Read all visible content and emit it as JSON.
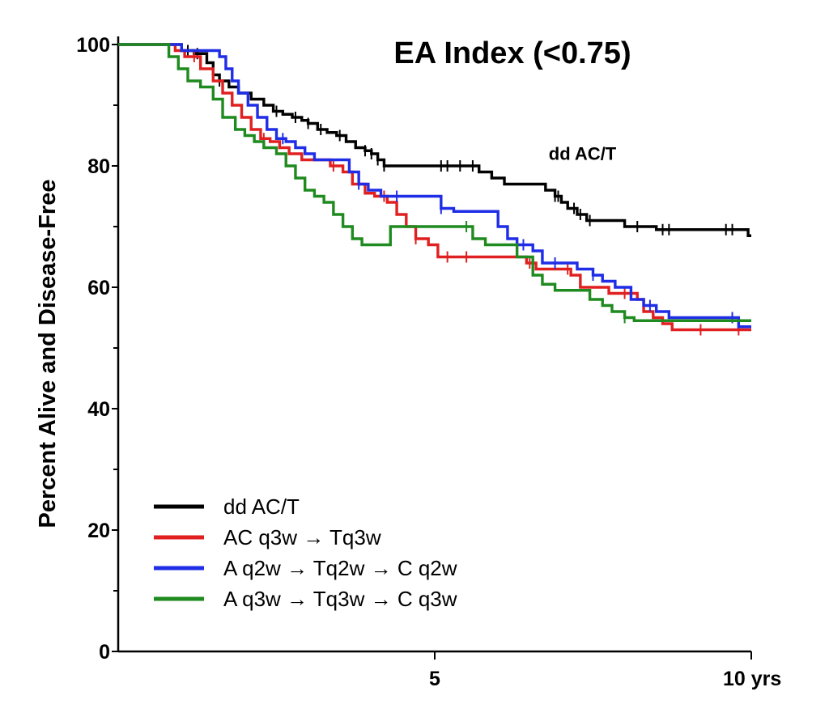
{
  "chart_data": {
    "type": "line",
    "subtype": "kaplan-meier step",
    "title": "EA Index (<0.75)",
    "xlabel": "",
    "ylabel": "Percent Alive and Disease-Free",
    "xlim": [
      0,
      10
    ],
    "ylim": [
      0,
      100
    ],
    "x_ticks": [
      {
        "value": 5,
        "label": "5"
      },
      {
        "value": 10,
        "label": "10 yrs"
      }
    ],
    "y_ticks": [
      {
        "value": 0,
        "label": "0"
      },
      {
        "value": 20,
        "label": "20"
      },
      {
        "value": 40,
        "label": "40"
      },
      {
        "value": 60,
        "label": "60"
      },
      {
        "value": 80,
        "label": "80"
      },
      {
        "value": 100,
        "label": "100"
      }
    ],
    "y_minor_ticks": [
      10,
      30,
      50,
      70,
      90
    ],
    "grid": false,
    "legend_position": "bottom-left",
    "annotations": [
      {
        "text": "dd AC/T",
        "x": 6.8,
        "y": 81,
        "series": "dd AC/T"
      }
    ],
    "series": [
      {
        "name": "dd AC/T",
        "color": "#000000",
        "points": [
          [
            0,
            100
          ],
          [
            0.8,
            100
          ],
          [
            1.0,
            99
          ],
          [
            1.2,
            98.5
          ],
          [
            1.4,
            97
          ],
          [
            1.5,
            95
          ],
          [
            1.6,
            94
          ],
          [
            1.75,
            93
          ],
          [
            1.9,
            92
          ],
          [
            2.1,
            91
          ],
          [
            2.3,
            90
          ],
          [
            2.45,
            89
          ],
          [
            2.6,
            88.5
          ],
          [
            2.75,
            88
          ],
          [
            2.9,
            87.5
          ],
          [
            3.0,
            87
          ],
          [
            3.15,
            86
          ],
          [
            3.3,
            85.5
          ],
          [
            3.45,
            85
          ],
          [
            3.6,
            84
          ],
          [
            3.75,
            83
          ],
          [
            3.9,
            82.5
          ],
          [
            4.0,
            82
          ],
          [
            4.1,
            81
          ],
          [
            4.2,
            80
          ],
          [
            4.6,
            80
          ],
          [
            5.0,
            80
          ],
          [
            5.6,
            80
          ],
          [
            5.7,
            79
          ],
          [
            5.9,
            78
          ],
          [
            6.1,
            77
          ],
          [
            6.6,
            77
          ],
          [
            6.75,
            76
          ],
          [
            6.9,
            75
          ],
          [
            7.0,
            74
          ],
          [
            7.1,
            73
          ],
          [
            7.25,
            72
          ],
          [
            7.4,
            71
          ],
          [
            7.6,
            71
          ],
          [
            8.0,
            70
          ],
          [
            8.4,
            70
          ],
          [
            8.5,
            69.5
          ],
          [
            9.9,
            69.5
          ],
          [
            9.95,
            68.5
          ],
          [
            10.0,
            68.5
          ]
        ],
        "censor_x": [
          1.1,
          1.25,
          1.6,
          2.5,
          2.8,
          3.0,
          3.2,
          3.5,
          3.9,
          4.0,
          4.1,
          4.2,
          5.1,
          5.2,
          5.4,
          5.6,
          6.9,
          6.95,
          7.2,
          7.3,
          7.45,
          8.2,
          8.6,
          8.7,
          9.6,
          9.7
        ]
      },
      {
        "name": "AC q3w → Tq3w",
        "color": "#e02020",
        "points": [
          [
            0,
            100
          ],
          [
            0.8,
            100
          ],
          [
            0.9,
            99
          ],
          [
            1.05,
            98
          ],
          [
            1.3,
            96
          ],
          [
            1.5,
            94
          ],
          [
            1.65,
            92
          ],
          [
            1.8,
            90
          ],
          [
            1.95,
            88
          ],
          [
            2.1,
            86
          ],
          [
            2.25,
            84.5
          ],
          [
            2.4,
            84
          ],
          [
            2.55,
            83
          ],
          [
            2.7,
            82
          ],
          [
            2.9,
            81
          ],
          [
            3.2,
            81
          ],
          [
            3.35,
            80
          ],
          [
            3.55,
            79
          ],
          [
            3.7,
            77
          ],
          [
            3.9,
            75.5
          ],
          [
            4.05,
            75
          ],
          [
            4.25,
            74
          ],
          [
            4.4,
            72
          ],
          [
            4.55,
            70
          ],
          [
            4.7,
            68
          ],
          [
            4.9,
            67
          ],
          [
            5.05,
            65
          ],
          [
            5.8,
            65
          ],
          [
            6.3,
            65
          ],
          [
            6.45,
            64
          ],
          [
            6.6,
            63
          ],
          [
            7.0,
            63
          ],
          [
            7.15,
            62
          ],
          [
            7.3,
            60
          ],
          [
            7.6,
            60
          ],
          [
            7.75,
            59
          ],
          [
            8.1,
            59
          ],
          [
            8.2,
            58
          ],
          [
            8.3,
            56
          ],
          [
            8.45,
            55
          ],
          [
            8.6,
            54
          ],
          [
            8.75,
            53
          ],
          [
            10.0,
            53
          ]
        ],
        "censor_x": [
          1.2,
          2.3,
          3.4,
          4.2,
          4.7,
          5.2,
          5.5,
          6.5,
          7.1,
          8.0,
          8.1,
          9.2,
          9.8
        ]
      },
      {
        "name": "A q2w → Tq2w → C q2w",
        "color": "#1f2de6",
        "points": [
          [
            0,
            100
          ],
          [
            0.9,
            100
          ],
          [
            1.0,
            99
          ],
          [
            1.5,
            99
          ],
          [
            1.6,
            98
          ],
          [
            1.7,
            96
          ],
          [
            1.8,
            94
          ],
          [
            1.9,
            92
          ],
          [
            2.05,
            90
          ],
          [
            2.2,
            88
          ],
          [
            2.35,
            86
          ],
          [
            2.5,
            84.5
          ],
          [
            2.65,
            84
          ],
          [
            2.8,
            83
          ],
          [
            2.95,
            82
          ],
          [
            3.1,
            81
          ],
          [
            3.5,
            81
          ],
          [
            3.65,
            79
          ],
          [
            3.8,
            77
          ],
          [
            3.95,
            76
          ],
          [
            4.15,
            75
          ],
          [
            4.4,
            75
          ],
          [
            5.0,
            75
          ],
          [
            5.1,
            73
          ],
          [
            5.3,
            72.5
          ],
          [
            5.9,
            72.5
          ],
          [
            6.0,
            70
          ],
          [
            6.15,
            68
          ],
          [
            6.3,
            67
          ],
          [
            6.55,
            66
          ],
          [
            6.7,
            64
          ],
          [
            7.1,
            64
          ],
          [
            7.25,
            63
          ],
          [
            7.5,
            62
          ],
          [
            7.65,
            61
          ],
          [
            7.85,
            60
          ],
          [
            8.1,
            58
          ],
          [
            8.3,
            57
          ],
          [
            8.5,
            56
          ],
          [
            8.7,
            55
          ],
          [
            9.6,
            55
          ],
          [
            9.8,
            53.5
          ],
          [
            10.0,
            53.5
          ]
        ],
        "censor_x": [
          2.6,
          3.8,
          4.4,
          5.1,
          6.4,
          6.9,
          7.5,
          8.4,
          9.7
        ]
      },
      {
        "name": "A q3w → Tq3w → C q3w",
        "color": "#1f8a1f",
        "points": [
          [
            0,
            100
          ],
          [
            0.7,
            100
          ],
          [
            0.8,
            98
          ],
          [
            0.95,
            96
          ],
          [
            1.1,
            94
          ],
          [
            1.3,
            93
          ],
          [
            1.5,
            91
          ],
          [
            1.65,
            88
          ],
          [
            1.85,
            86
          ],
          [
            2.0,
            85
          ],
          [
            2.15,
            84
          ],
          [
            2.3,
            83
          ],
          [
            2.5,
            82
          ],
          [
            2.65,
            80
          ],
          [
            2.8,
            78
          ],
          [
            2.95,
            76
          ],
          [
            3.1,
            75
          ],
          [
            3.25,
            74
          ],
          [
            3.4,
            72
          ],
          [
            3.55,
            70
          ],
          [
            3.7,
            68
          ],
          [
            3.85,
            67
          ],
          [
            4.05,
            67
          ],
          [
            4.3,
            70
          ],
          [
            5.4,
            70
          ],
          [
            5.6,
            68
          ],
          [
            5.8,
            67
          ],
          [
            6.15,
            67
          ],
          [
            6.3,
            65
          ],
          [
            6.55,
            62
          ],
          [
            6.7,
            60.5
          ],
          [
            6.9,
            59.5
          ],
          [
            7.3,
            59.5
          ],
          [
            7.45,
            58
          ],
          [
            7.65,
            57
          ],
          [
            7.8,
            56
          ],
          [
            8.0,
            55
          ],
          [
            8.15,
            54.5
          ],
          [
            10.0,
            54.5
          ]
        ],
        "censor_x": [
          5.5,
          8.0
        ]
      }
    ]
  }
}
